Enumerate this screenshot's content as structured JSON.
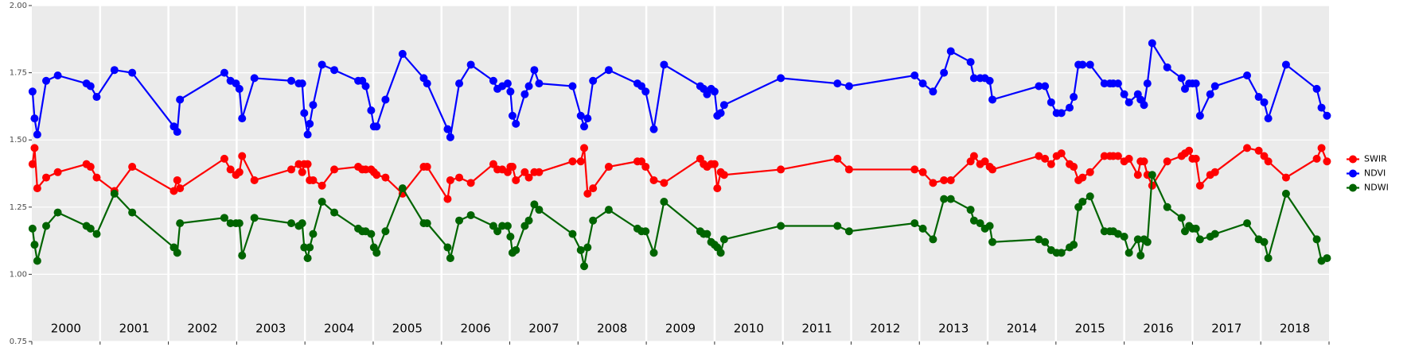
{
  "chart_data": {
    "type": "line",
    "x": [
      2000.01,
      2000.04,
      2000.08,
      2000.21,
      2000.38,
      2000.8,
      2000.86,
      2000.95,
      2001.21,
      2001.47,
      2002.08,
      2002.13,
      2002.17,
      2002.82,
      2002.91,
      2002.99,
      2003.04,
      2003.08,
      2003.26,
      2003.8,
      2003.91,
      2003.96,
      2003.99,
      2004.04,
      2004.07,
      2004.12,
      2004.25,
      2004.43,
      2004.78,
      2004.84,
      2004.89,
      2004.97,
      2005.01,
      2005.05,
      2005.18,
      2005.43,
      2005.74,
      2005.79,
      2006.09,
      2006.13,
      2006.26,
      2006.43,
      2006.76,
      2006.82,
      2006.89,
      2006.97,
      2007.01,
      2007.04,
      2007.09,
      2007.22,
      2007.28,
      2007.36,
      2007.43,
      2007.92,
      2008.04,
      2008.09,
      2008.14,
      2008.22,
      2008.45,
      2008.87,
      2008.93,
      2008.99,
      2009.11,
      2009.26,
      2009.79,
      2009.84,
      2009.89,
      2009.95,
      2010.0,
      2010.04,
      2010.09,
      2010.14,
      2010.97,
      2011.8,
      2011.97,
      2012.93,
      2013.05,
      2013.2,
      2013.36,
      2013.46,
      2013.75,
      2013.8,
      2013.89,
      2013.96,
      2014.03,
      2014.07,
      2014.75,
      2014.84,
      2014.93,
      2015.01,
      2015.08,
      2015.2,
      2015.26,
      2015.33,
      2015.39,
      2015.5,
      2015.71,
      2015.79,
      2015.84,
      2015.91,
      2016.0,
      2016.07,
      2016.2,
      2016.24,
      2016.29,
      2016.34,
      2016.41,
      2016.63,
      2016.84,
      2016.89,
      2016.95,
      2017.0,
      2017.05,
      2017.11,
      2017.26,
      2017.33,
      2017.8,
      2017.97,
      2018.05,
      2018.11,
      2018.37,
      2018.82,
      2018.89,
      2018.97
    ],
    "series": [
      {
        "name": "SWIR",
        "color": "#ff0000",
        "values": [
          1.41,
          1.47,
          1.32,
          1.36,
          1.38,
          1.41,
          1.4,
          1.36,
          1.31,
          1.4,
          1.31,
          1.35,
          1.32,
          1.43,
          1.39,
          1.37,
          1.38,
          1.44,
          1.35,
          1.39,
          1.41,
          1.38,
          1.41,
          1.41,
          1.35,
          1.35,
          1.33,
          1.39,
          1.4,
          1.39,
          1.39,
          1.39,
          1.38,
          1.37,
          1.36,
          1.3,
          1.4,
          1.4,
          1.28,
          1.35,
          1.36,
          1.34,
          1.41,
          1.39,
          1.39,
          1.38,
          1.4,
          1.4,
          1.35,
          1.38,
          1.36,
          1.38,
          1.38,
          1.42,
          1.42,
          1.47,
          1.3,
          1.32,
          1.4,
          1.42,
          1.42,
          1.4,
          1.35,
          1.34,
          1.43,
          1.41,
          1.4,
          1.41,
          1.41,
          1.32,
          1.38,
          1.37,
          1.39,
          1.43,
          1.39,
          1.39,
          1.38,
          1.34,
          1.35,
          1.35,
          1.42,
          1.44,
          1.41,
          1.42,
          1.4,
          1.39,
          1.44,
          1.43,
          1.41,
          1.44,
          1.45,
          1.41,
          1.4,
          1.35,
          1.36,
          1.38,
          1.44,
          1.44,
          1.44,
          1.44,
          1.42,
          1.43,
          1.37,
          1.42,
          1.42,
          1.37,
          1.33,
          1.42,
          1.44,
          1.45,
          1.46,
          1.43,
          1.43,
          1.33,
          1.37,
          1.38,
          1.47,
          1.46,
          1.44,
          1.42,
          1.36,
          1.43,
          1.47,
          1.42
        ]
      },
      {
        "name": "NDVI",
        "color": "#0000ff",
        "values": [
          1.68,
          1.58,
          1.52,
          1.72,
          1.74,
          1.71,
          1.7,
          1.66,
          1.76,
          1.75,
          1.55,
          1.53,
          1.65,
          1.75,
          1.72,
          1.71,
          1.69,
          1.58,
          1.73,
          1.72,
          1.71,
          1.71,
          1.6,
          1.52,
          1.56,
          1.63,
          1.78,
          1.76,
          1.72,
          1.72,
          1.7,
          1.61,
          1.55,
          1.55,
          1.65,
          1.82,
          1.73,
          1.71,
          1.54,
          1.51,
          1.71,
          1.78,
          1.72,
          1.69,
          1.7,
          1.71,
          1.68,
          1.59,
          1.56,
          1.67,
          1.7,
          1.76,
          1.71,
          1.7,
          1.59,
          1.55,
          1.58,
          1.72,
          1.76,
          1.71,
          1.7,
          1.68,
          1.54,
          1.78,
          1.7,
          1.69,
          1.67,
          1.69,
          1.68,
          1.59,
          1.6,
          1.63,
          1.73,
          1.71,
          1.7,
          1.74,
          1.71,
          1.68,
          1.75,
          1.83,
          1.79,
          1.73,
          1.73,
          1.73,
          1.72,
          1.65,
          1.7,
          1.7,
          1.64,
          1.6,
          1.6,
          1.62,
          1.66,
          1.78,
          1.78,
          1.78,
          1.71,
          1.71,
          1.71,
          1.71,
          1.67,
          1.64,
          1.67,
          1.65,
          1.63,
          1.71,
          1.86,
          1.77,
          1.73,
          1.69,
          1.71,
          1.71,
          1.71,
          1.59,
          1.67,
          1.7,
          1.74,
          1.66,
          1.64,
          1.58,
          1.78,
          1.69,
          1.62,
          1.59
        ]
      },
      {
        "name": "NDWI",
        "color": "#006400",
        "values": [
          1.17,
          1.11,
          1.05,
          1.18,
          1.23,
          1.18,
          1.17,
          1.15,
          1.3,
          1.23,
          1.1,
          1.08,
          1.19,
          1.21,
          1.19,
          1.19,
          1.19,
          1.07,
          1.21,
          1.19,
          1.18,
          1.19,
          1.1,
          1.06,
          1.1,
          1.15,
          1.27,
          1.23,
          1.17,
          1.16,
          1.16,
          1.15,
          1.1,
          1.08,
          1.16,
          1.32,
          1.19,
          1.19,
          1.1,
          1.06,
          1.2,
          1.22,
          1.18,
          1.16,
          1.18,
          1.18,
          1.14,
          1.08,
          1.09,
          1.18,
          1.2,
          1.26,
          1.24,
          1.15,
          1.09,
          1.03,
          1.1,
          1.2,
          1.24,
          1.17,
          1.16,
          1.16,
          1.08,
          1.27,
          1.16,
          1.15,
          1.15,
          1.12,
          1.11,
          1.1,
          1.08,
          1.13,
          1.18,
          1.18,
          1.16,
          1.19,
          1.17,
          1.13,
          1.28,
          1.28,
          1.24,
          1.2,
          1.19,
          1.17,
          1.18,
          1.12,
          1.13,
          1.12,
          1.09,
          1.08,
          1.08,
          1.1,
          1.11,
          1.25,
          1.27,
          1.29,
          1.16,
          1.16,
          1.16,
          1.15,
          1.14,
          1.08,
          1.13,
          1.07,
          1.13,
          1.12,
          1.37,
          1.25,
          1.21,
          1.16,
          1.18,
          1.17,
          1.17,
          1.13,
          1.14,
          1.15,
          1.19,
          1.13,
          1.12,
          1.06,
          1.3,
          1.13,
          1.05,
          1.06
        ]
      }
    ],
    "xlim": [
      2000,
      2019
    ],
    "xticks": [
      {
        "value": 2000.5,
        "label": "2000"
      },
      {
        "value": 2001.5,
        "label": "2001"
      },
      {
        "value": 2002.5,
        "label": "2002"
      },
      {
        "value": 2003.5,
        "label": "2003"
      },
      {
        "value": 2004.5,
        "label": "2004"
      },
      {
        "value": 2005.5,
        "label": "2005"
      },
      {
        "value": 2006.5,
        "label": "2006"
      },
      {
        "value": 2007.5,
        "label": "2007"
      },
      {
        "value": 2008.5,
        "label": "2008"
      },
      {
        "value": 2009.5,
        "label": "2009"
      },
      {
        "value": 2010.5,
        "label": "2010"
      },
      {
        "value": 2011.5,
        "label": "2011"
      },
      {
        "value": 2012.5,
        "label": "2012"
      },
      {
        "value": 2013.5,
        "label": "2013"
      },
      {
        "value": 2014.5,
        "label": "2014"
      },
      {
        "value": 2015.5,
        "label": "2015"
      },
      {
        "value": 2016.5,
        "label": "2016"
      },
      {
        "value": 2017.5,
        "label": "2017"
      },
      {
        "value": 2018.5,
        "label": "2018"
      }
    ],
    "ylim": [
      0.75,
      2.0
    ],
    "yticks": [
      0.75,
      {
        "value": 1.0,
        "label": "1.00"
      },
      1.25,
      {
        "value": 1.5,
        "label": "1.50"
      },
      1.75,
      {
        "value": 2.0,
        "label": "2.00"
      }
    ],
    "grid": true,
    "legend": "right"
  }
}
